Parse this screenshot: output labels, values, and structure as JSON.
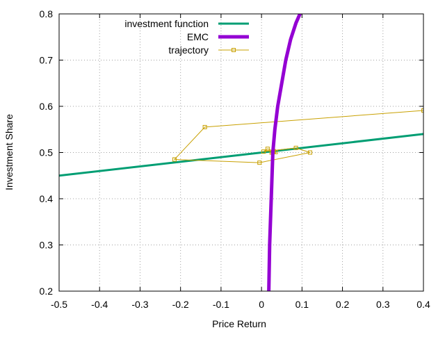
{
  "chart_data": {
    "type": "line",
    "xlabel": "Price Return",
    "ylabel": "Investment Share",
    "xlim": [
      -0.5,
      0.4
    ],
    "ylim": [
      0.2,
      0.8
    ],
    "x_ticks": [
      "-0.5",
      "-0.4",
      "-0.3",
      "-0.2",
      "-0.1",
      "0",
      "0.1",
      "0.2",
      "0.3",
      "0.4"
    ],
    "y_ticks": [
      "0.2",
      "0.3",
      "0.4",
      "0.5",
      "0.6",
      "0.7",
      "0.8"
    ],
    "grid": true,
    "legend_position": "top-left",
    "series": [
      {
        "name": "investment function",
        "color": "#009e73",
        "style": "line",
        "x": [
          -0.5,
          0.4
        ],
        "y": [
          0.45,
          0.54
        ]
      },
      {
        "name": "EMC",
        "color": "#9400d3",
        "style": "thick-line",
        "x": [
          0.018,
          0.02,
          0.024,
          0.028,
          0.033,
          0.04,
          0.05,
          0.06,
          0.072,
          0.085,
          0.095
        ],
        "y": [
          0.2,
          0.3,
          0.4,
          0.5,
          0.55,
          0.6,
          0.65,
          0.7,
          0.745,
          0.78,
          0.8
        ]
      },
      {
        "name": "trajectory",
        "color": "#c8a000",
        "style": "line-points",
        "x": [
          0.4,
          -0.14,
          -0.215,
          -0.005,
          0.12,
          0.085,
          0.005,
          0.015,
          0.03,
          0.035,
          0.025,
          0.03,
          0.028
        ],
        "y": [
          0.591,
          0.555,
          0.485,
          0.478,
          0.5,
          0.51,
          0.502,
          0.508,
          0.503,
          0.501,
          0.5,
          0.502,
          0.501
        ]
      }
    ]
  }
}
